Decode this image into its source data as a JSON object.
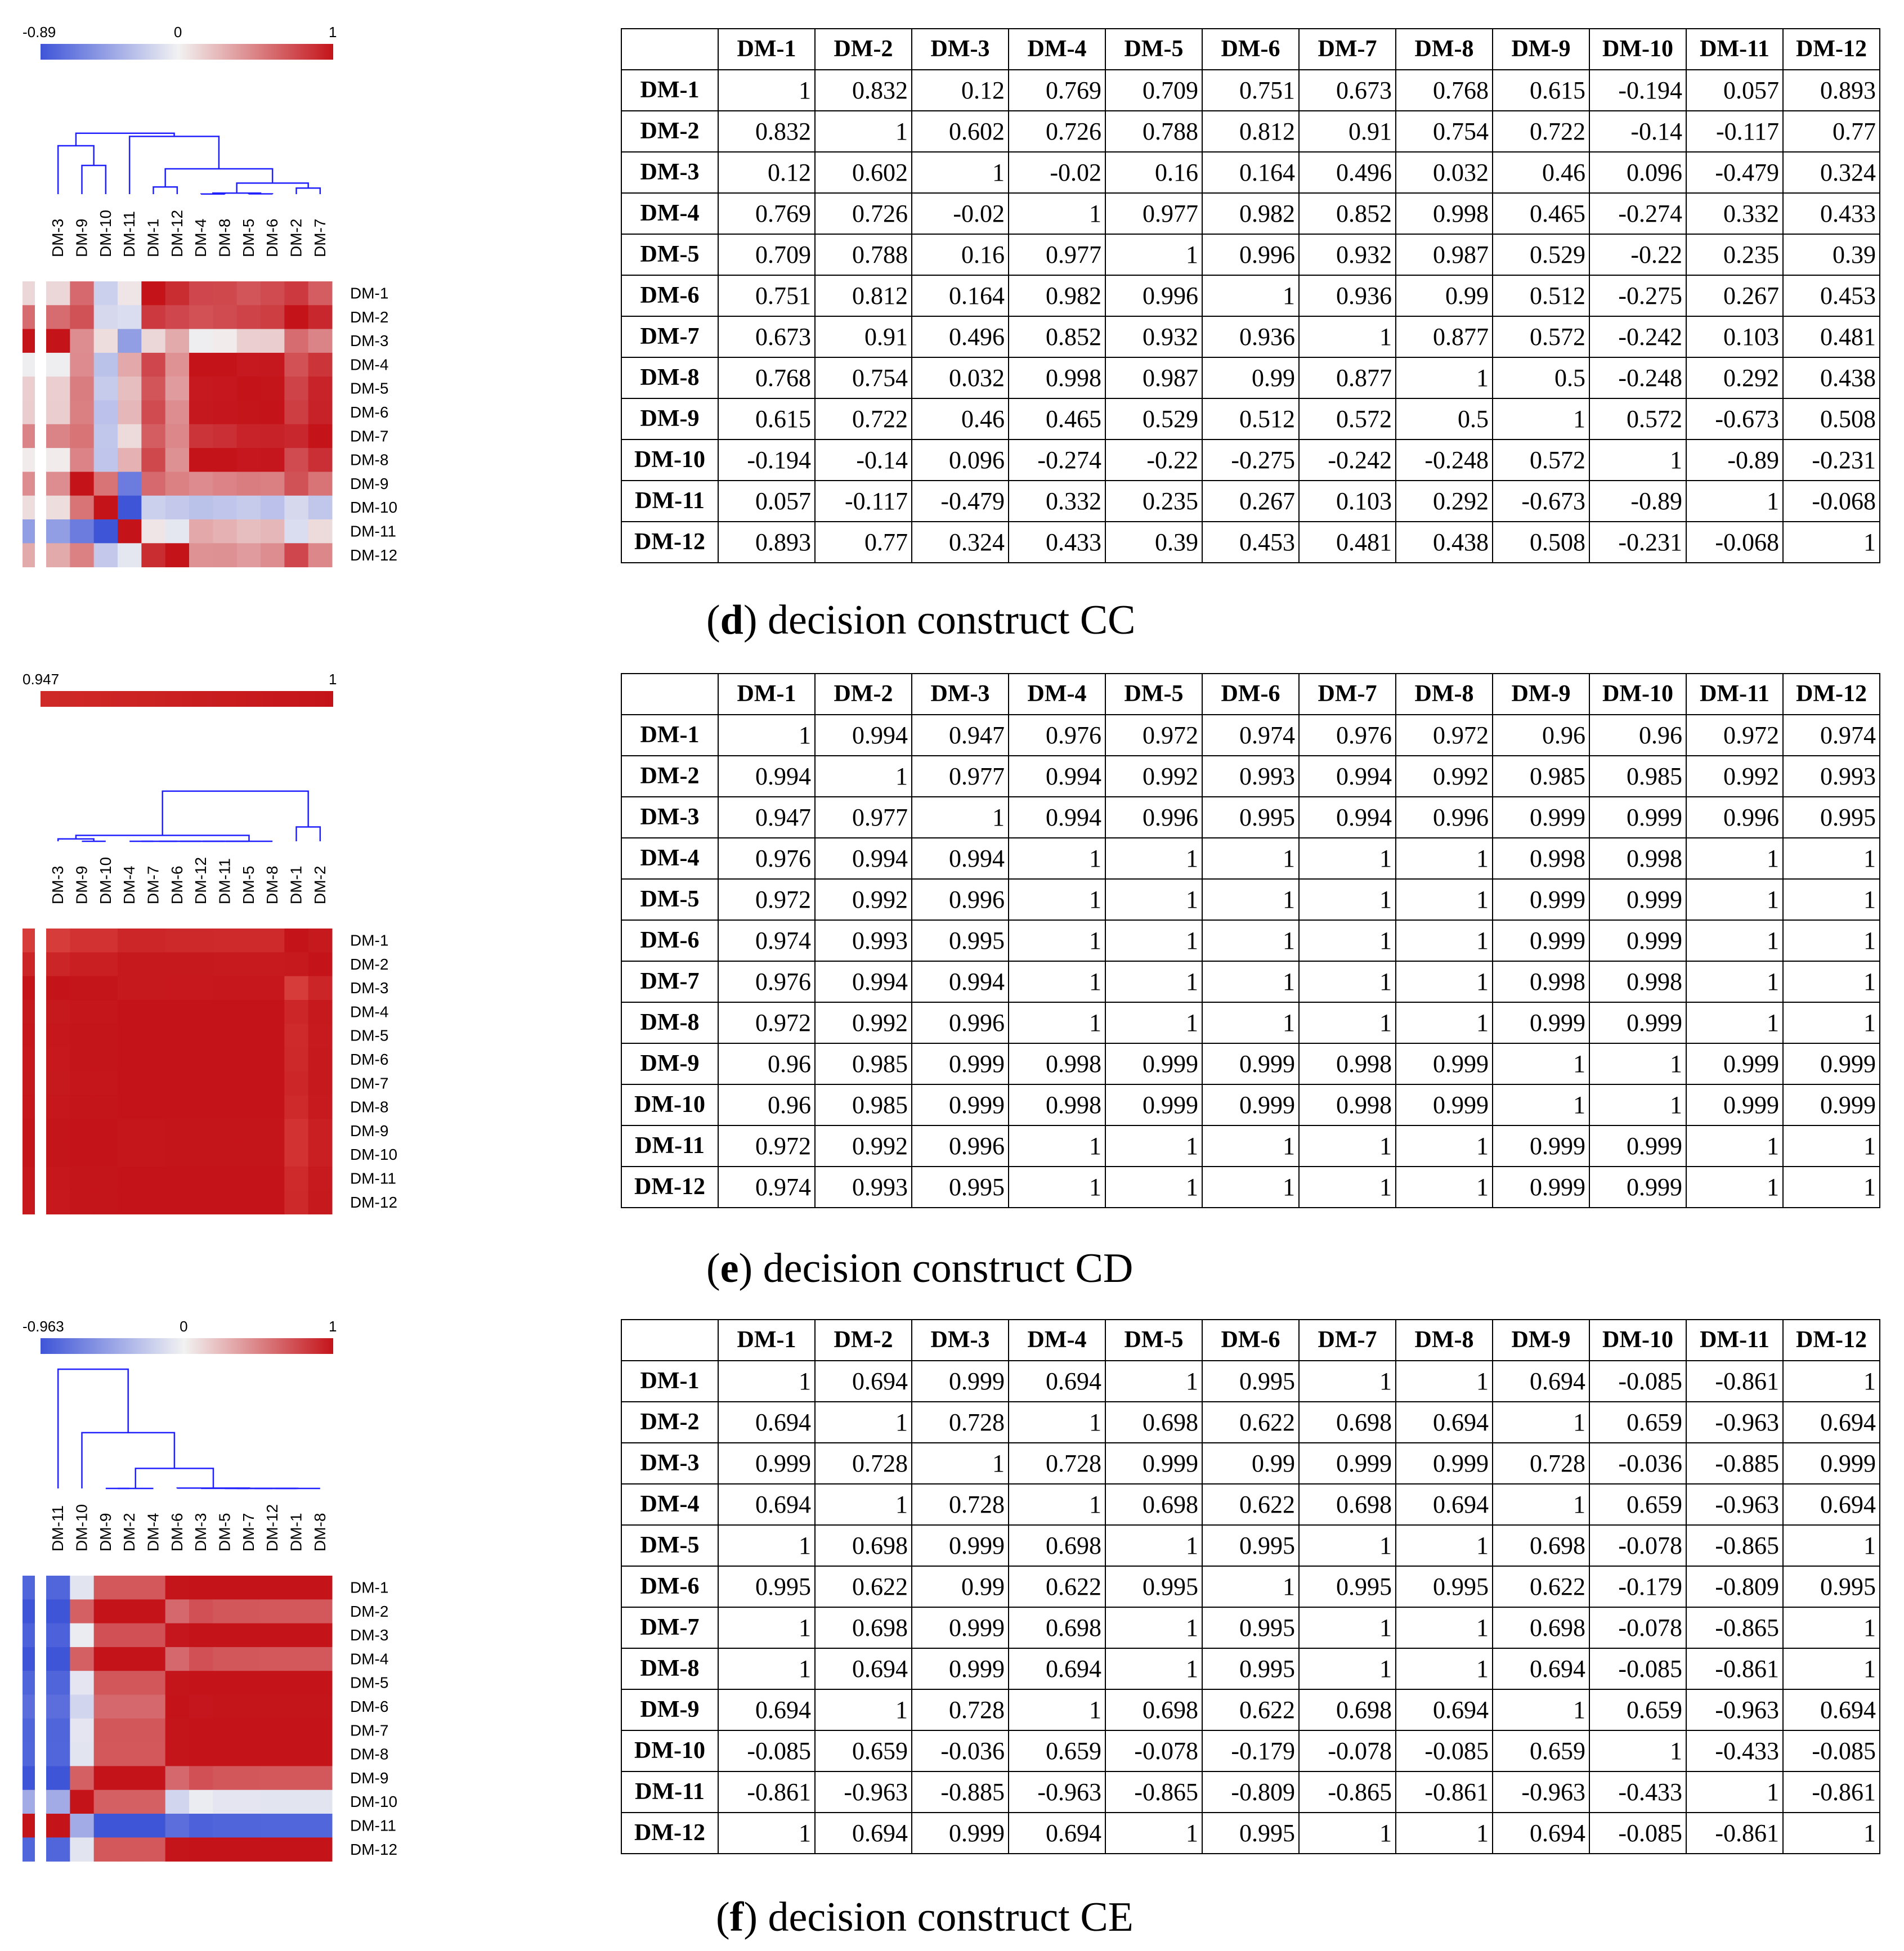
{
  "labels": [
    "DM-1",
    "DM-2",
    "DM-3",
    "DM-4",
    "DM-5",
    "DM-6",
    "DM-7",
    "DM-8",
    "DM-9",
    "DM-10",
    "DM-11",
    "DM-12"
  ],
  "colors": {
    "negative": "#3f55d8",
    "neutral": "#f2f2f2",
    "positive": "#c4141a",
    "dendrogram": "#2020ff"
  },
  "chart_data": [
    {
      "type": "heatmap",
      "panel_letter": "d",
      "caption": "decision construct CC",
      "scale": {
        "min_label": "-0.89",
        "mid_label": "0",
        "max_label": "1",
        "min": -0.89,
        "max": 1
      },
      "cluster_order": [
        "DM-3",
        "DM-9",
        "DM-10",
        "DM-11",
        "DM-1",
        "DM-12",
        "DM-4",
        "DM-8",
        "DM-5",
        "DM-6",
        "DM-2",
        "DM-7"
      ],
      "matrix": [
        [
          "1",
          "0.832",
          "0.12",
          "0.769",
          "0.709",
          "0.751",
          "0.673",
          "0.768",
          "0.615",
          "-0.194",
          "0.057",
          "0.893"
        ],
        [
          "0.832",
          "1",
          "0.602",
          "0.726",
          "0.788",
          "0.812",
          "0.91",
          "0.754",
          "0.722",
          "-0.14",
          "-0.117",
          "0.77"
        ],
        [
          "0.12",
          "0.602",
          "1",
          "-0.02",
          "0.16",
          "0.164",
          "0.496",
          "0.032",
          "0.46",
          "0.096",
          "-0.479",
          "0.324"
        ],
        [
          "0.769",
          "0.726",
          "-0.02",
          "1",
          "0.977",
          "0.982",
          "0.852",
          "0.998",
          "0.465",
          "-0.274",
          "0.332",
          "0.433"
        ],
        [
          "0.709",
          "0.788",
          "0.16",
          "0.977",
          "1",
          "0.996",
          "0.932",
          "0.987",
          "0.529",
          "-0.22",
          "0.235",
          "0.39"
        ],
        [
          "0.751",
          "0.812",
          "0.164",
          "0.982",
          "0.996",
          "1",
          "0.936",
          "0.99",
          "0.512",
          "-0.275",
          "0.267",
          "0.453"
        ],
        [
          "0.673",
          "0.91",
          "0.496",
          "0.852",
          "0.932",
          "0.936",
          "1",
          "0.877",
          "0.572",
          "-0.242",
          "0.103",
          "0.481"
        ],
        [
          "0.768",
          "0.754",
          "0.032",
          "0.998",
          "0.987",
          "0.99",
          "0.877",
          "1",
          "0.5",
          "-0.248",
          "0.292",
          "0.438"
        ],
        [
          "0.615",
          "0.722",
          "0.46",
          "0.465",
          "0.529",
          "0.512",
          "0.572",
          "0.5",
          "1",
          "0.572",
          "-0.673",
          "0.508"
        ],
        [
          "-0.194",
          "-0.14",
          "0.096",
          "-0.274",
          "-0.22",
          "-0.275",
          "-0.242",
          "-0.248",
          "0.572",
          "1",
          "-0.89",
          "-0.231"
        ],
        [
          "0.057",
          "-0.117",
          "-0.479",
          "0.332",
          "0.235",
          "0.267",
          "0.103",
          "0.292",
          "-0.673",
          "-0.89",
          "1",
          "-0.068"
        ],
        [
          "0.893",
          "0.77",
          "0.324",
          "0.433",
          "0.39",
          "0.453",
          "0.481",
          "0.438",
          "0.508",
          "-0.231",
          "-0.068",
          "1"
        ]
      ]
    },
    {
      "type": "heatmap",
      "panel_letter": "e",
      "caption": "decision construct CD",
      "scale": {
        "min_label": "0.947",
        "max_label": "1",
        "min": 0.947,
        "max": 1
      },
      "cluster_order": [
        "DM-3",
        "DM-9",
        "DM-10",
        "DM-4",
        "DM-7",
        "DM-6",
        "DM-12",
        "DM-11",
        "DM-5",
        "DM-8",
        "DM-1",
        "DM-2"
      ],
      "matrix": [
        [
          "1",
          "0.994",
          "0.947",
          "0.976",
          "0.972",
          "0.974",
          "0.976",
          "0.972",
          "0.96",
          "0.96",
          "0.972",
          "0.974"
        ],
        [
          "0.994",
          "1",
          "0.977",
          "0.994",
          "0.992",
          "0.993",
          "0.994",
          "0.992",
          "0.985",
          "0.985",
          "0.992",
          "0.993"
        ],
        [
          "0.947",
          "0.977",
          "1",
          "0.994",
          "0.996",
          "0.995",
          "0.994",
          "0.996",
          "0.999",
          "0.999",
          "0.996",
          "0.995"
        ],
        [
          "0.976",
          "0.994",
          "0.994",
          "1",
          "1",
          "1",
          "1",
          "1",
          "0.998",
          "0.998",
          "1",
          "1"
        ],
        [
          "0.972",
          "0.992",
          "0.996",
          "1",
          "1",
          "1",
          "1",
          "1",
          "0.999",
          "0.999",
          "1",
          "1"
        ],
        [
          "0.974",
          "0.993",
          "0.995",
          "1",
          "1",
          "1",
          "1",
          "1",
          "0.999",
          "0.999",
          "1",
          "1"
        ],
        [
          "0.976",
          "0.994",
          "0.994",
          "1",
          "1",
          "1",
          "1",
          "1",
          "0.998",
          "0.998",
          "1",
          "1"
        ],
        [
          "0.972",
          "0.992",
          "0.996",
          "1",
          "1",
          "1",
          "1",
          "1",
          "0.999",
          "0.999",
          "1",
          "1"
        ],
        [
          "0.96",
          "0.985",
          "0.999",
          "0.998",
          "0.999",
          "0.999",
          "0.998",
          "0.999",
          "1",
          "1",
          "0.999",
          "0.999"
        ],
        [
          "0.96",
          "0.985",
          "0.999",
          "0.998",
          "0.999",
          "0.999",
          "0.998",
          "0.999",
          "1",
          "1",
          "0.999",
          "0.999"
        ],
        [
          "0.972",
          "0.992",
          "0.996",
          "1",
          "1",
          "1",
          "1",
          "1",
          "0.999",
          "0.999",
          "1",
          "1"
        ],
        [
          "0.974",
          "0.993",
          "0.995",
          "1",
          "1",
          "1",
          "1",
          "1",
          "0.999",
          "0.999",
          "1",
          "1"
        ]
      ]
    },
    {
      "type": "heatmap",
      "panel_letter": "f",
      "caption": "decision construct CE",
      "scale": {
        "min_label": "-0.963",
        "mid_label": "0",
        "max_label": "1",
        "min": -0.963,
        "max": 1
      },
      "cluster_order": [
        "DM-11",
        "DM-10",
        "DM-9",
        "DM-2",
        "DM-4",
        "DM-6",
        "DM-3",
        "DM-5",
        "DM-7",
        "DM-12",
        "DM-1",
        "DM-8"
      ],
      "matrix": [
        [
          "1",
          "0.694",
          "0.999",
          "0.694",
          "1",
          "0.995",
          "1",
          "1",
          "0.694",
          "-0.085",
          "-0.861",
          "1"
        ],
        [
          "0.694",
          "1",
          "0.728",
          "1",
          "0.698",
          "0.622",
          "0.698",
          "0.694",
          "1",
          "0.659",
          "-0.963",
          "0.694"
        ],
        [
          "0.999",
          "0.728",
          "1",
          "0.728",
          "0.999",
          "0.99",
          "0.999",
          "0.999",
          "0.728",
          "-0.036",
          "-0.885",
          "0.999"
        ],
        [
          "0.694",
          "1",
          "0.728",
          "1",
          "0.698",
          "0.622",
          "0.698",
          "0.694",
          "1",
          "0.659",
          "-0.963",
          "0.694"
        ],
        [
          "1",
          "0.698",
          "0.999",
          "0.698",
          "1",
          "0.995",
          "1",
          "1",
          "0.698",
          "-0.078",
          "-0.865",
          "1"
        ],
        [
          "0.995",
          "0.622",
          "0.99",
          "0.622",
          "0.995",
          "1",
          "0.995",
          "0.995",
          "0.622",
          "-0.179",
          "-0.809",
          "0.995"
        ],
        [
          "1",
          "0.698",
          "0.999",
          "0.698",
          "1",
          "0.995",
          "1",
          "1",
          "0.698",
          "-0.078",
          "-0.865",
          "1"
        ],
        [
          "1",
          "0.694",
          "0.999",
          "0.694",
          "1",
          "0.995",
          "1",
          "1",
          "0.694",
          "-0.085",
          "-0.861",
          "1"
        ],
        [
          "0.694",
          "1",
          "0.728",
          "1",
          "0.698",
          "0.622",
          "0.698",
          "0.694",
          "1",
          "0.659",
          "-0.963",
          "0.694"
        ],
        [
          "-0.085",
          "0.659",
          "-0.036",
          "0.659",
          "-0.078",
          "-0.179",
          "-0.078",
          "-0.085",
          "0.659",
          "1",
          "-0.433",
          "-0.085"
        ],
        [
          "-0.861",
          "-0.963",
          "-0.885",
          "-0.963",
          "-0.865",
          "-0.809",
          "-0.865",
          "-0.861",
          "-0.963",
          "-0.433",
          "1",
          "-0.861"
        ],
        [
          "1",
          "0.694",
          "0.999",
          "0.694",
          "1",
          "0.995",
          "1",
          "1",
          "0.694",
          "-0.085",
          "-0.861",
          "1"
        ]
      ]
    }
  ]
}
